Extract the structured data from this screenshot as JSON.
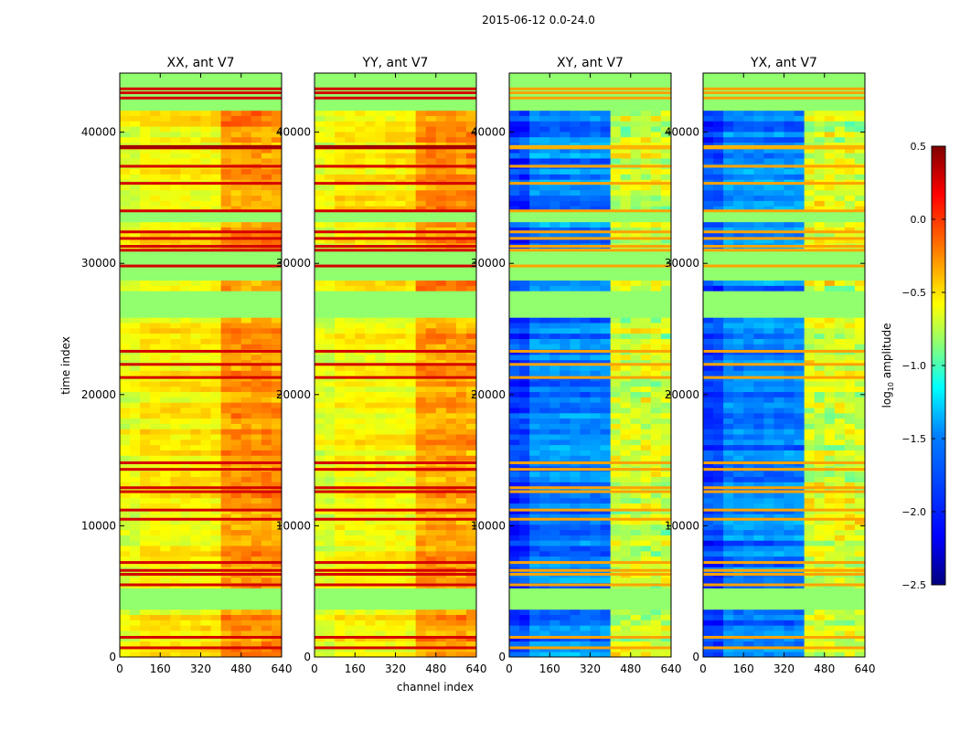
{
  "figure": {
    "suptitle": "2015-06-12 0.0-24.0",
    "xlabel": "channel index",
    "ylabel": "time index"
  },
  "colorbar": {
    "label": "log10 amplitude",
    "label_main": "log",
    "label_sub": "10",
    "label_rest": " amplitude",
    "colormap": "jet",
    "range": [
      -2.5,
      0.5
    ],
    "ticks": [
      0.5,
      0.0,
      -0.5,
      -1.0,
      -1.5,
      -2.0,
      -2.5
    ],
    "tick_labels": [
      "0.5",
      "0.0",
      "−0.5",
      "−1.0",
      "−1.5",
      "−2.0",
      "−2.5"
    ],
    "colors": {
      "stop_0": "#00007f",
      "stop_1": "#0000ff",
      "stop_2": "#007fff",
      "stop_3": "#00ffff",
      "stop_4": "#7fff7f",
      "stop_5": "#ffff00",
      "stop_6": "#ff7f00",
      "stop_7": "#ff0000",
      "stop_8": "#7f0000"
    }
  },
  "chart_data": {
    "type": "heatmap",
    "xlim": [
      0,
      640
    ],
    "ylim": [
      0,
      44500
    ],
    "x_ticks": [
      0,
      160,
      320,
      480,
      640
    ],
    "y_ticks": [
      0,
      10000,
      20000,
      30000,
      40000
    ],
    "panels": [
      {
        "title": "XX, ant V7",
        "kind": "parallel",
        "base_level": -0.6
      },
      {
        "title": "YY, ant V7",
        "kind": "parallel",
        "base_level": -0.6
      },
      {
        "title": "XY, ant V7",
        "kind": "cross",
        "base_level": -1.75
      },
      {
        "title": "YX, ant V7",
        "kind": "cross",
        "base_level": -1.75
      }
    ],
    "flagged_time_ranges": [
      [
        3800,
        5200
      ],
      [
        26100,
        27700
      ],
      [
        29000,
        31000
      ],
      [
        33200,
        33900
      ],
      [
        42000,
        44500
      ]
    ],
    "strong_rows": [
      700,
      1500,
      5500,
      6300,
      6600,
      7200,
      10500,
      11200,
      12600,
      12900,
      14300,
      14800,
      21300,
      22300,
      23300,
      29800,
      31000,
      31300,
      31900,
      32400,
      34000,
      36100,
      37400,
      38800,
      42600,
      43000,
      43300
    ],
    "band_channel_ranges": [
      [
        410,
        470
      ],
      [
        480,
        520
      ],
      [
        530,
        570
      ],
      [
        580,
        610
      ]
    ]
  }
}
